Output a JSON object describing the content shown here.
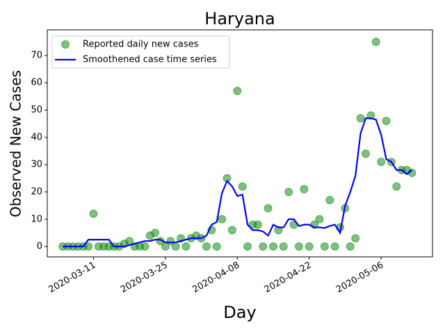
{
  "chart_data": {
    "type": "line",
    "title": "Haryana",
    "x_label": "Day",
    "y_label": "Observed New Cases",
    "x": [
      "2020-03-05",
      "2020-03-06",
      "2020-03-07",
      "2020-03-08",
      "2020-03-09",
      "2020-03-10",
      "2020-03-11",
      "2020-03-12",
      "2020-03-13",
      "2020-03-14",
      "2020-03-15",
      "2020-03-16",
      "2020-03-17",
      "2020-03-18",
      "2020-03-19",
      "2020-03-20",
      "2020-03-21",
      "2020-03-22",
      "2020-03-23",
      "2020-03-24",
      "2020-03-25",
      "2020-03-26",
      "2020-03-27",
      "2020-03-28",
      "2020-03-29",
      "2020-03-30",
      "2020-03-31",
      "2020-04-01",
      "2020-04-02",
      "2020-04-03",
      "2020-04-04",
      "2020-04-05",
      "2020-04-06",
      "2020-04-07",
      "2020-04-08",
      "2020-04-09",
      "2020-04-10",
      "2020-04-11",
      "2020-04-12",
      "2020-04-13",
      "2020-04-14",
      "2020-04-15",
      "2020-04-16",
      "2020-04-17",
      "2020-04-18",
      "2020-04-19",
      "2020-04-20",
      "2020-04-21",
      "2020-04-22",
      "2020-04-23",
      "2020-04-24",
      "2020-04-25",
      "2020-04-26",
      "2020-04-27",
      "2020-04-28",
      "2020-04-29",
      "2020-04-30",
      "2020-05-01",
      "2020-05-02",
      "2020-05-03",
      "2020-05-04",
      "2020-05-05",
      "2020-05-06",
      "2020-05-07",
      "2020-05-08",
      "2020-05-09",
      "2020-05-10",
      "2020-05-11",
      "2020-05-12"
    ],
    "series": [
      {
        "name": "Reported daily new cases",
        "type": "scatter",
        "color": "#008000",
        "values": [
          0,
          0,
          0,
          0,
          0,
          0,
          12,
          0,
          0,
          0,
          0,
          0,
          1,
          2,
          0,
          0,
          0,
          4,
          5,
          2,
          0,
          2,
          0,
          3,
          0,
          3,
          4,
          3,
          0,
          6,
          0,
          10,
          25,
          6,
          57,
          22,
          0,
          8,
          8,
          0,
          14,
          0,
          6,
          0,
          20,
          8,
          0,
          21,
          0,
          8,
          10,
          0,
          17,
          0,
          7,
          14,
          0,
          3,
          47,
          34,
          48,
          75,
          31,
          46,
          31,
          22,
          28,
          28,
          27
        ]
      },
      {
        "name": "Smoothened case time series",
        "type": "line",
        "color": "#0000ff",
        "values": [
          0,
          0,
          0,
          0,
          0,
          2.5,
          2.5,
          2.5,
          2.5,
          2.5,
          0,
          0,
          0,
          0.5,
          1,
          1.5,
          2,
          2,
          2.5,
          2.5,
          1.5,
          1.5,
          1.5,
          2,
          2.5,
          3,
          3,
          3,
          4,
          8,
          9,
          19.5,
          24,
          22,
          18.5,
          19,
          8,
          6,
          6,
          5.5,
          4,
          8,
          7,
          7,
          10,
          10,
          7.5,
          8,
          8,
          7,
          7,
          6.8,
          7.5,
          8,
          5,
          15,
          20,
          26,
          41.5,
          47,
          47,
          46.5,
          41,
          32,
          31,
          28,
          28,
          26.5,
          28
        ]
      }
    ],
    "xlim": [
      "2020-03-02",
      "2020-05-16"
    ],
    "xticks": [
      "2020-03-11",
      "2020-03-25",
      "2020-04-08",
      "2020-04-22",
      "2020-05-06"
    ],
    "ylim": [
      -3.8,
      79.4
    ],
    "yticks": [
      0,
      10,
      20,
      30,
      40,
      50,
      60,
      70
    ],
    "legend": "upper left"
  }
}
